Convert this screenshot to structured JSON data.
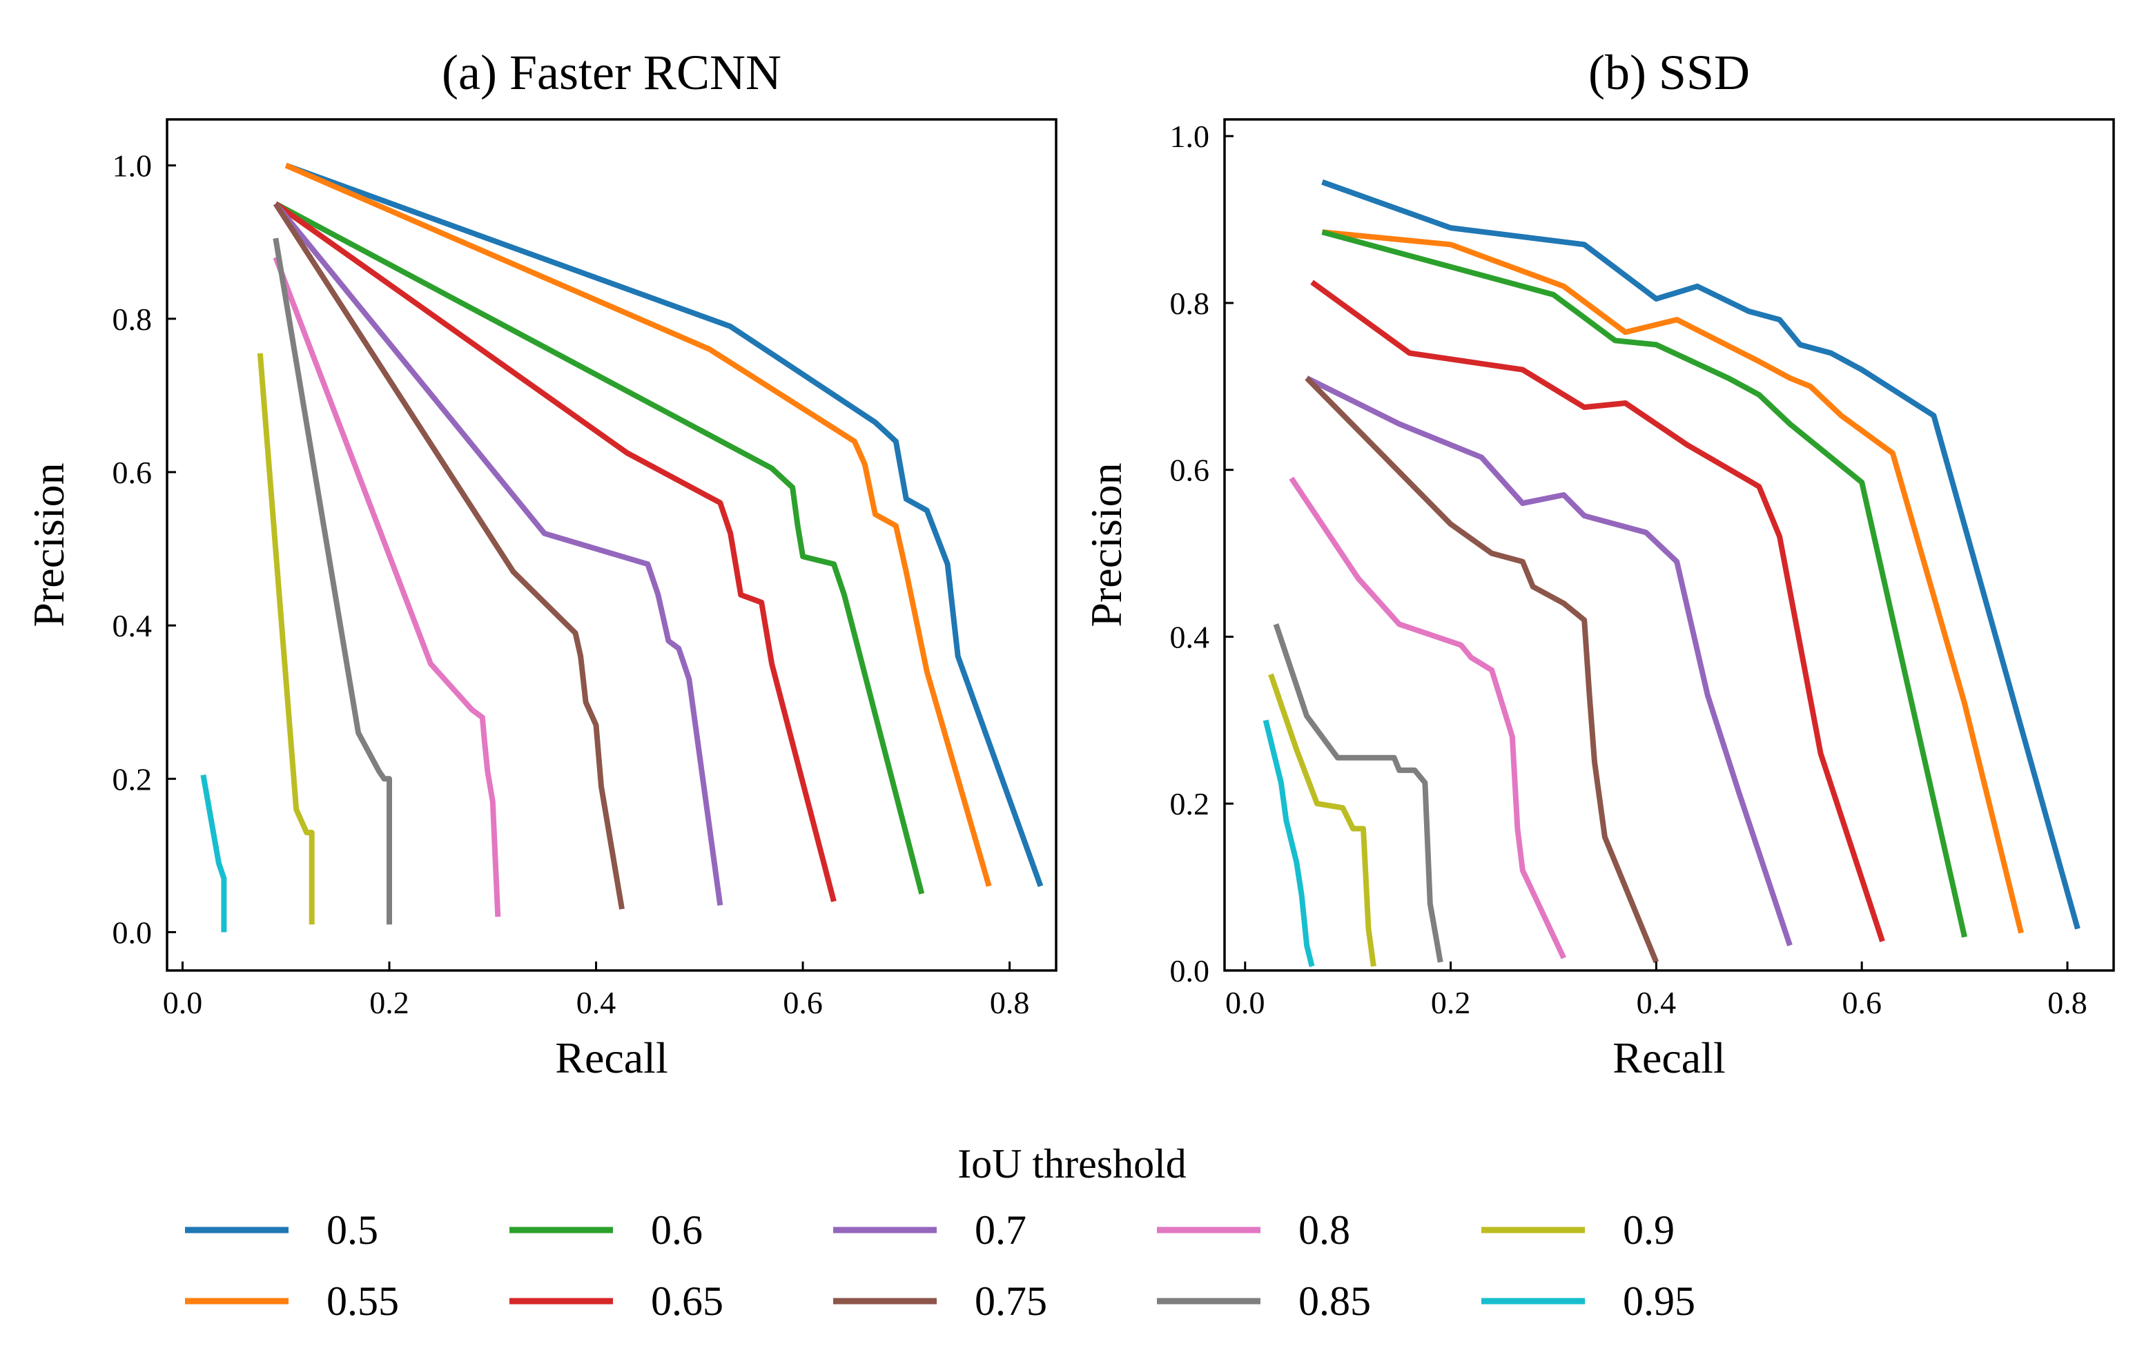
{
  "legend": {
    "title": "IoU threshold"
  },
  "series_colors": {
    "0.5": "#1f77b4",
    "0.55": "#ff7f0e",
    "0.6": "#2ca02c",
    "0.65": "#d62728",
    "0.7": "#9467bd",
    "0.75": "#8c564b",
    "0.8": "#e377c2",
    "0.85": "#7f7f7f",
    "0.9": "#bcbd22",
    "0.95": "#17becf"
  },
  "chart_data": [
    {
      "type": "line",
      "title": "(a) Faster RCNN",
      "xlabel": "Recall",
      "ylabel": "Precision",
      "xlim": [
        -0.015,
        0.845
      ],
      "ylim": [
        -0.05,
        1.06
      ],
      "xticks": [
        "0.0",
        "0.2",
        "0.4",
        "0.6",
        "0.8"
      ],
      "xtick_values": [
        0,
        0.2,
        0.4,
        0.6,
        0.8
      ],
      "yticks": [
        "0.0",
        "0.2",
        "0.4",
        "0.6",
        "0.8",
        "1.0"
      ],
      "ytick_values": [
        0,
        0.2,
        0.4,
        0.6,
        0.8,
        1.0
      ],
      "grid": false,
      "series": [
        {
          "name": "0.5",
          "x": [
            0.1,
            0.53,
            0.67,
            0.69,
            0.7,
            0.72,
            0.74,
            0.75,
            0.83
          ],
          "y": [
            1.0,
            0.79,
            0.665,
            0.64,
            0.565,
            0.55,
            0.48,
            0.36,
            0.06
          ]
        },
        {
          "name": "0.55",
          "x": [
            0.1,
            0.51,
            0.65,
            0.66,
            0.67,
            0.69,
            0.7,
            0.72,
            0.78
          ],
          "y": [
            1.0,
            0.76,
            0.64,
            0.61,
            0.545,
            0.53,
            0.47,
            0.34,
            0.06
          ]
        },
        {
          "name": "0.6",
          "x": [
            0.09,
            0.57,
            0.59,
            0.595,
            0.6,
            0.63,
            0.64,
            0.715
          ],
          "y": [
            0.95,
            0.605,
            0.58,
            0.53,
            0.49,
            0.48,
            0.44,
            0.05
          ]
        },
        {
          "name": "0.65",
          "x": [
            0.09,
            0.43,
            0.52,
            0.53,
            0.54,
            0.56,
            0.57,
            0.63
          ],
          "y": [
            0.95,
            0.625,
            0.56,
            0.52,
            0.44,
            0.43,
            0.35,
            0.04
          ]
        },
        {
          "name": "0.7",
          "x": [
            0.09,
            0.35,
            0.45,
            0.46,
            0.47,
            0.48,
            0.49,
            0.52
          ],
          "y": [
            0.95,
            0.52,
            0.48,
            0.44,
            0.38,
            0.37,
            0.33,
            0.035
          ]
        },
        {
          "name": "0.75",
          "x": [
            0.09,
            0.32,
            0.38,
            0.385,
            0.39,
            0.4,
            0.405,
            0.425
          ],
          "y": [
            0.95,
            0.47,
            0.39,
            0.36,
            0.3,
            0.27,
            0.19,
            0.03
          ]
        },
        {
          "name": "0.8",
          "x": [
            0.09,
            0.24,
            0.28,
            0.29,
            0.292,
            0.295,
            0.3,
            0.305
          ],
          "y": [
            0.88,
            0.35,
            0.29,
            0.28,
            0.25,
            0.21,
            0.17,
            0.02
          ]
        },
        {
          "name": "0.85",
          "x": [
            0.09,
            0.17,
            0.19,
            0.195,
            0.2,
            0.2,
            0.2
          ],
          "y": [
            0.905,
            0.26,
            0.21,
            0.2,
            0.2,
            0.18,
            0.01
          ]
        },
        {
          "name": "0.9",
          "x": [
            0.075,
            0.11,
            0.12,
            0.125,
            0.125
          ],
          "y": [
            0.755,
            0.16,
            0.13,
            0.13,
            0.01
          ]
        },
        {
          "name": "0.95",
          "x": [
            0.02,
            0.035,
            0.04,
            0.04
          ],
          "y": [
            0.205,
            0.09,
            0.07,
            0.0
          ]
        }
      ]
    },
    {
      "type": "line",
      "title": "(b) SSD",
      "xlabel": "Recall",
      "ylabel": "Precision",
      "xlim": [
        -0.02,
        0.845
      ],
      "ylim": [
        0.0,
        1.02
      ],
      "xticks": [
        "0.0",
        "0.2",
        "0.4",
        "0.6",
        "0.8"
      ],
      "xtick_values": [
        0,
        0.2,
        0.4,
        0.6,
        0.8
      ],
      "yticks": [
        "0.0",
        "0.2",
        "0.4",
        "0.6",
        "0.8",
        "1.0"
      ],
      "ytick_values": [
        0,
        0.2,
        0.4,
        0.6,
        0.8,
        1.0
      ],
      "grid": false,
      "series": [
        {
          "name": "0.5",
          "x": [
            0.075,
            0.2,
            0.33,
            0.4,
            0.44,
            0.49,
            0.52,
            0.54,
            0.57,
            0.6,
            0.67,
            0.81
          ],
          "y": [
            0.945,
            0.89,
            0.87,
            0.805,
            0.82,
            0.79,
            0.78,
            0.75,
            0.74,
            0.72,
            0.665,
            0.05
          ]
        },
        {
          "name": "0.55",
          "x": [
            0.075,
            0.2,
            0.31,
            0.37,
            0.42,
            0.5,
            0.53,
            0.55,
            0.58,
            0.63,
            0.7,
            0.755
          ],
          "y": [
            0.885,
            0.87,
            0.82,
            0.765,
            0.78,
            0.73,
            0.71,
            0.7,
            0.665,
            0.62,
            0.32,
            0.045
          ]
        },
        {
          "name": "0.6",
          "x": [
            0.075,
            0.3,
            0.36,
            0.4,
            0.47,
            0.5,
            0.53,
            0.6,
            0.7
          ],
          "y": [
            0.885,
            0.81,
            0.755,
            0.75,
            0.71,
            0.69,
            0.655,
            0.585,
            0.04
          ]
        },
        {
          "name": "0.65",
          "x": [
            0.065,
            0.16,
            0.27,
            0.33,
            0.37,
            0.43,
            0.5,
            0.52,
            0.56,
            0.62
          ],
          "y": [
            0.825,
            0.74,
            0.72,
            0.675,
            0.68,
            0.63,
            0.58,
            0.52,
            0.26,
            0.035
          ]
        },
        {
          "name": "0.7",
          "x": [
            0.06,
            0.15,
            0.23,
            0.27,
            0.31,
            0.33,
            0.39,
            0.42,
            0.45,
            0.48,
            0.53
          ],
          "y": [
            0.71,
            0.655,
            0.615,
            0.56,
            0.57,
            0.545,
            0.525,
            0.49,
            0.33,
            0.215,
            0.03
          ]
        },
        {
          "name": "0.75",
          "x": [
            0.06,
            0.2,
            0.24,
            0.27,
            0.28,
            0.31,
            0.33,
            0.335,
            0.34,
            0.35,
            0.4
          ],
          "y": [
            0.71,
            0.535,
            0.5,
            0.49,
            0.46,
            0.44,
            0.42,
            0.33,
            0.25,
            0.16,
            0.01
          ]
        },
        {
          "name": "0.8",
          "x": [
            0.045,
            0.11,
            0.15,
            0.21,
            0.22,
            0.24,
            0.25,
            0.26,
            0.265,
            0.27,
            0.31
          ],
          "y": [
            0.59,
            0.47,
            0.415,
            0.39,
            0.375,
            0.36,
            0.32,
            0.28,
            0.17,
            0.12,
            0.015
          ]
        },
        {
          "name": "0.85",
          "x": [
            0.03,
            0.06,
            0.09,
            0.145,
            0.15,
            0.165,
            0.175,
            0.18,
            0.19
          ],
          "y": [
            0.415,
            0.305,
            0.255,
            0.255,
            0.24,
            0.24,
            0.225,
            0.08,
            0.01
          ]
        },
        {
          "name": "0.9",
          "x": [
            0.025,
            0.05,
            0.07,
            0.095,
            0.105,
            0.115,
            0.12,
            0.125
          ],
          "y": [
            0.355,
            0.265,
            0.2,
            0.195,
            0.17,
            0.17,
            0.05,
            0.005
          ]
        },
        {
          "name": "0.95",
          "x": [
            0.02,
            0.035,
            0.04,
            0.05,
            0.055,
            0.06,
            0.065
          ],
          "y": [
            0.3,
            0.225,
            0.18,
            0.13,
            0.09,
            0.03,
            0.005
          ]
        }
      ]
    }
  ]
}
